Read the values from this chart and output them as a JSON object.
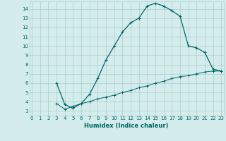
{
  "xlabel": "Humidex (Indice chaleur)",
  "bg_color": "#d4edec",
  "line_color": "#006666",
  "grid_color": "#a8cccc",
  "upper_x": [
    3,
    4,
    5,
    6,
    7,
    8,
    9,
    10,
    11,
    12,
    13,
    14,
    15,
    16,
    17,
    18,
    19,
    20,
    21,
    22,
    23
  ],
  "upper_y": [
    6.0,
    3.7,
    3.3,
    3.8,
    4.8,
    6.5,
    8.5,
    10.0,
    11.5,
    12.5,
    13.0,
    14.3,
    14.6,
    14.3,
    13.8,
    13.2,
    10.0,
    9.8,
    9.3,
    7.5,
    7.3
  ],
  "lower_x": [
    3,
    4,
    5,
    6,
    7,
    8,
    9,
    10,
    11,
    12,
    13,
    14,
    15,
    16,
    17,
    18,
    19,
    20,
    21,
    22,
    23
  ],
  "lower_y": [
    3.8,
    3.2,
    3.5,
    3.8,
    4.0,
    4.3,
    4.5,
    4.7,
    5.0,
    5.2,
    5.5,
    5.7,
    6.0,
    6.2,
    6.5,
    6.7,
    6.8,
    7.0,
    7.2,
    7.3,
    7.3
  ],
  "xlim": [
    -0.3,
    23.3
  ],
  "ylim": [
    2.5,
    14.8
  ],
  "xticks": [
    0,
    1,
    2,
    3,
    4,
    5,
    6,
    7,
    8,
    9,
    10,
    11,
    12,
    13,
    14,
    15,
    16,
    17,
    18,
    19,
    20,
    21,
    22,
    23
  ],
  "yticks": [
    3,
    4,
    5,
    6,
    7,
    8,
    9,
    10,
    11,
    12,
    13,
    14
  ]
}
